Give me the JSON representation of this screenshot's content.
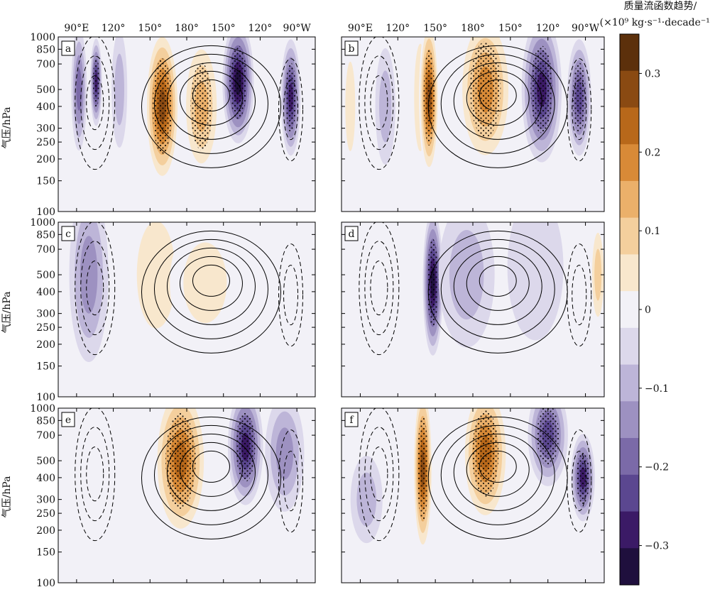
{
  "chart_data": {
    "type": "heatmap",
    "ylabel": "气压/hPa",
    "colorbar": {
      "title_line1": "质量流函数趋势/",
      "title_line2": "(×10⁹ kg·s⁻¹·decade⁻¹)",
      "tick_labels": [
        "0.3",
        "0.2",
        "0.1",
        "0",
        "−0.1",
        "−0.2",
        "−0.3"
      ],
      "tick_values": [
        0.3,
        0.2,
        0.1,
        0,
        -0.1,
        -0.2,
        -0.3
      ],
      "range": [
        -0.35,
        0.35
      ],
      "levels": [
        -0.35,
        -0.3,
        -0.25,
        -0.2,
        -0.15,
        -0.1,
        -0.05,
        0,
        0.05,
        0.1,
        0.15,
        0.2,
        0.25,
        0.3,
        0.35
      ],
      "colors": [
        "#1f0f3d",
        "#3b1a66",
        "#5b4790",
        "#7b6aa8",
        "#9d91c1",
        "#bdb5d8",
        "#dcd8eb",
        "#f2f1f7",
        "#f8e7cd",
        "#f4cf9d",
        "#ebb06a",
        "#d88a37",
        "#b8681a",
        "#8a4a12",
        "#5c300b"
      ]
    },
    "x_tick_labels": [
      "90°E",
      "120°",
      "150°",
      "180°",
      "150°",
      "120°",
      "90°W"
    ],
    "y_tick_labels": [
      "100",
      "150",
      "200",
      "250",
      "300",
      "400",
      "500",
      "700",
      "850",
      "1000"
    ],
    "y_tick_values": [
      100,
      150,
      200,
      250,
      300,
      400,
      500,
      700,
      850,
      1000
    ],
    "xlim": [
      75,
      285
    ],
    "ylim": [
      1000,
      100
    ],
    "panels": [
      {
        "label": "a",
        "features": [
          {
            "lon": 92,
            "p": 500,
            "value": -0.18,
            "w": 4,
            "h": 420
          },
          {
            "lon": 106,
            "p": 550,
            "value": -0.3,
            "w": 3,
            "h": 300
          },
          {
            "lon": 125,
            "p": 500,
            "value": -0.08,
            "w": 4,
            "h": 400
          },
          {
            "lon": 160,
            "p": 400,
            "value": 0.33,
            "w": 9,
            "h": 550
          },
          {
            "lon": 192,
            "p": 400,
            "value": 0.2,
            "w": 10,
            "h": 500
          },
          {
            "lon": 222,
            "p": 550,
            "value": -0.34,
            "w": 8,
            "h": 420
          },
          {
            "lon": 245,
            "p": 600,
            "value": 0.06,
            "w": 6,
            "h": 500
          },
          {
            "lon": 265,
            "p": 450,
            "value": -0.3,
            "w": 5,
            "h": 400
          }
        ]
      },
      {
        "label": "b",
        "features": [
          {
            "lon": 82,
            "p": 400,
            "value": 0.08,
            "w": 4,
            "h": 500
          },
          {
            "lon": 110,
            "p": 400,
            "value": -0.08,
            "w": 5,
            "h": 400
          },
          {
            "lon": 138,
            "p": 450,
            "value": 0.1,
            "w": 5,
            "h": 600
          },
          {
            "lon": 145,
            "p": 450,
            "value": 0.34,
            "w": 5,
            "h": 550
          },
          {
            "lon": 190,
            "p": 500,
            "value": 0.25,
            "w": 14,
            "h": 550
          },
          {
            "lon": 235,
            "p": 500,
            "value": -0.3,
            "w": 10,
            "h": 500
          },
          {
            "lon": 265,
            "p": 450,
            "value": -0.25,
            "w": 6,
            "h": 400
          }
        ]
      },
      {
        "label": "c",
        "features": [
          {
            "lon": 100,
            "p": 500,
            "value": -0.15,
            "w": 10,
            "h": 600
          },
          {
            "lon": 155,
            "p": 500,
            "value": 0.1,
            "w": 16,
            "h": 600
          },
          {
            "lon": 195,
            "p": 450,
            "value": 0.1,
            "w": 18,
            "h": 450
          },
          {
            "lon": 240,
            "p": 700,
            "value": 0.02,
            "w": 10,
            "h": 500
          }
        ]
      },
      {
        "label": "d",
        "features": [
          {
            "lon": 120,
            "p": 400,
            "value": 0.05,
            "w": 10,
            "h": 500
          },
          {
            "lon": 148,
            "p": 450,
            "value": -0.35,
            "w": 5,
            "h": 500
          },
          {
            "lon": 175,
            "p": 500,
            "value": -0.12,
            "w": 14,
            "h": 500
          },
          {
            "lon": 230,
            "p": 550,
            "value": -0.05,
            "w": 14,
            "h": 500
          },
          {
            "lon": 265,
            "p": 200,
            "value": 0.06,
            "w": 12,
            "h": 300
          },
          {
            "lon": 280,
            "p": 500,
            "value": 0.14,
            "w": 4,
            "h": 400
          }
        ]
      },
      {
        "label": "e",
        "features": [
          {
            "lon": 128,
            "p": 500,
            "value": 0.06,
            "w": 5,
            "h": 500
          },
          {
            "lon": 175,
            "p": 500,
            "value": 0.3,
            "w": 14,
            "h": 550
          },
          {
            "lon": 228,
            "p": 600,
            "value": -0.32,
            "w": 9,
            "h": 400
          },
          {
            "lon": 260,
            "p": 550,
            "value": -0.15,
            "w": 10,
            "h": 400
          }
        ]
      },
      {
        "label": "f",
        "features": [
          {
            "lon": 95,
            "p": 300,
            "value": -0.08,
            "w": 8,
            "h": 300
          },
          {
            "lon": 140,
            "p": 450,
            "value": 0.34,
            "w": 5,
            "h": 600
          },
          {
            "lon": 190,
            "p": 550,
            "value": 0.3,
            "w": 12,
            "h": 500
          },
          {
            "lon": 240,
            "p": 700,
            "value": -0.25,
            "w": 10,
            "h": 350
          },
          {
            "lon": 268,
            "p": 400,
            "value": -0.28,
            "w": 6,
            "h": 300
          }
        ]
      }
    ]
  }
}
